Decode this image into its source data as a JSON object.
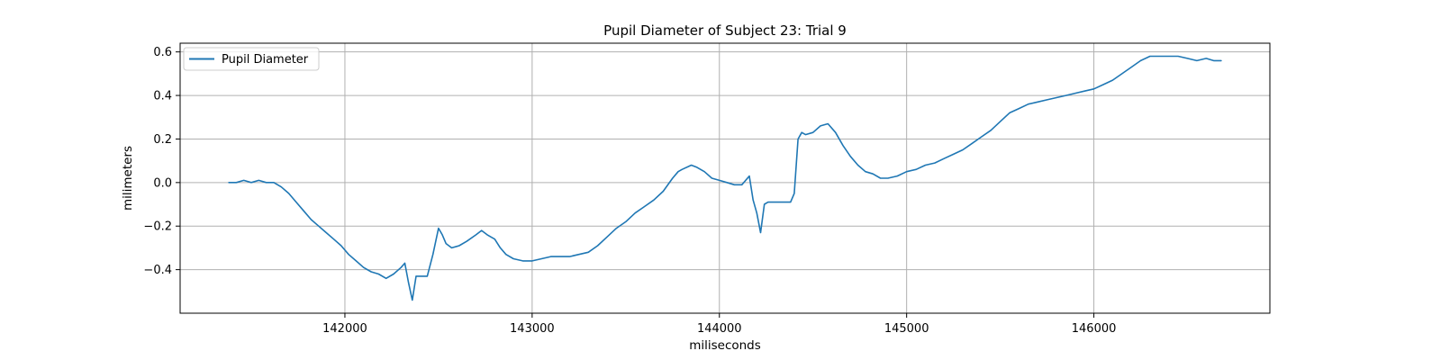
{
  "chart_data": {
    "type": "line",
    "title": "Pupil Diameter of Subject 23: Trial 9",
    "xlabel": "miliseconds",
    "ylabel": "milimeters",
    "xlim": [
      141120,
      146940
    ],
    "ylim": [
      -0.6,
      0.64
    ],
    "xticks": [
      142000,
      143000,
      144000,
      145000,
      146000
    ],
    "yticks": [
      -0.4,
      -0.2,
      0.0,
      0.2,
      0.4,
      0.6
    ],
    "grid": true,
    "legend_position": "top-left",
    "colors": {
      "line": "#1f77b4",
      "grid": "#b0b0b0"
    },
    "series": [
      {
        "name": "Pupil Diameter",
        "x": [
          141380,
          141420,
          141460,
          141500,
          141540,
          141580,
          141620,
          141660,
          141700,
          141740,
          141780,
          141820,
          141860,
          141900,
          141940,
          141980,
          142020,
          142060,
          142100,
          142140,
          142180,
          142220,
          142260,
          142300,
          142320,
          142340,
          142360,
          142380,
          142400,
          142440,
          142470,
          142500,
          142520,
          142540,
          142570,
          142610,
          142650,
          142700,
          142730,
          142760,
          142800,
          142830,
          142860,
          142900,
          142950,
          143000,
          143050,
          143100,
          143150,
          143200,
          143250,
          143300,
          143350,
          143400,
          143450,
          143500,
          143550,
          143600,
          143650,
          143700,
          143750,
          143780,
          143800,
          143850,
          143880,
          143920,
          143960,
          144000,
          144040,
          144080,
          144120,
          144160,
          144180,
          144200,
          144220,
          144240,
          144260,
          144300,
          144340,
          144380,
          144400,
          144420,
          144440,
          144460,
          144500,
          144540,
          144580,
          144620,
          144660,
          144700,
          144740,
          144780,
          144820,
          144860,
          144900,
          144950,
          145000,
          145050,
          145100,
          145150,
          145200,
          145250,
          145300,
          145350,
          145400,
          145450,
          145500,
          145550,
          145600,
          145650,
          145700,
          145750,
          145800,
          145850,
          145900,
          145950,
          146000,
          146050,
          146100,
          146150,
          146200,
          146250,
          146300,
          146350,
          146400,
          146450,
          146500,
          146550,
          146600,
          146640,
          146680
        ],
        "values": [
          0.0,
          0.0,
          0.01,
          0.0,
          0.01,
          0.0,
          0.0,
          -0.02,
          -0.05,
          -0.09,
          -0.13,
          -0.17,
          -0.2,
          -0.23,
          -0.26,
          -0.29,
          -0.33,
          -0.36,
          -0.39,
          -0.41,
          -0.42,
          -0.44,
          -0.42,
          -0.39,
          -0.37,
          -0.46,
          -0.54,
          -0.43,
          -0.43,
          -0.43,
          -0.33,
          -0.21,
          -0.24,
          -0.28,
          -0.3,
          -0.29,
          -0.27,
          -0.24,
          -0.22,
          -0.24,
          -0.26,
          -0.3,
          -0.33,
          -0.35,
          -0.36,
          -0.36,
          -0.35,
          -0.34,
          -0.34,
          -0.34,
          -0.33,
          -0.32,
          -0.29,
          -0.25,
          -0.21,
          -0.18,
          -0.14,
          -0.11,
          -0.08,
          -0.04,
          0.02,
          0.05,
          0.06,
          0.08,
          0.07,
          0.05,
          0.02,
          0.01,
          0.0,
          -0.01,
          -0.01,
          0.03,
          -0.08,
          -0.14,
          -0.23,
          -0.1,
          -0.09,
          -0.09,
          -0.09,
          -0.09,
          -0.05,
          0.2,
          0.23,
          0.22,
          0.23,
          0.26,
          0.27,
          0.23,
          0.17,
          0.12,
          0.08,
          0.05,
          0.04,
          0.02,
          0.02,
          0.03,
          0.05,
          0.06,
          0.08,
          0.09,
          0.11,
          0.13,
          0.15,
          0.18,
          0.21,
          0.24,
          0.28,
          0.32,
          0.34,
          0.36,
          0.37,
          0.38,
          0.39,
          0.4,
          0.41,
          0.42,
          0.43,
          0.45,
          0.47,
          0.5,
          0.53,
          0.56,
          0.58,
          0.58,
          0.58,
          0.58,
          0.57,
          0.56,
          0.57,
          0.56,
          0.56
        ]
      }
    ]
  }
}
